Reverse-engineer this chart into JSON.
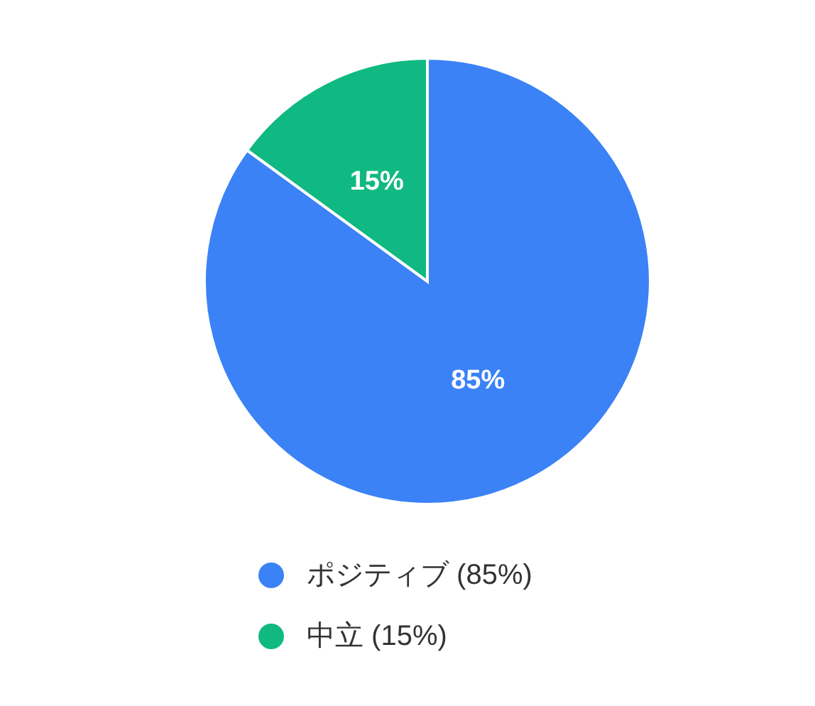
{
  "chart_data": {
    "type": "pie",
    "categories": [
      "ポジティブ (85%)",
      "中立 (15%)"
    ],
    "values": [
      85,
      15
    ],
    "colors": [
      "#3b82f6",
      "#10b981"
    ],
    "value_labels": [
      "85%",
      "15%"
    ],
    "legend": "bottom"
  }
}
